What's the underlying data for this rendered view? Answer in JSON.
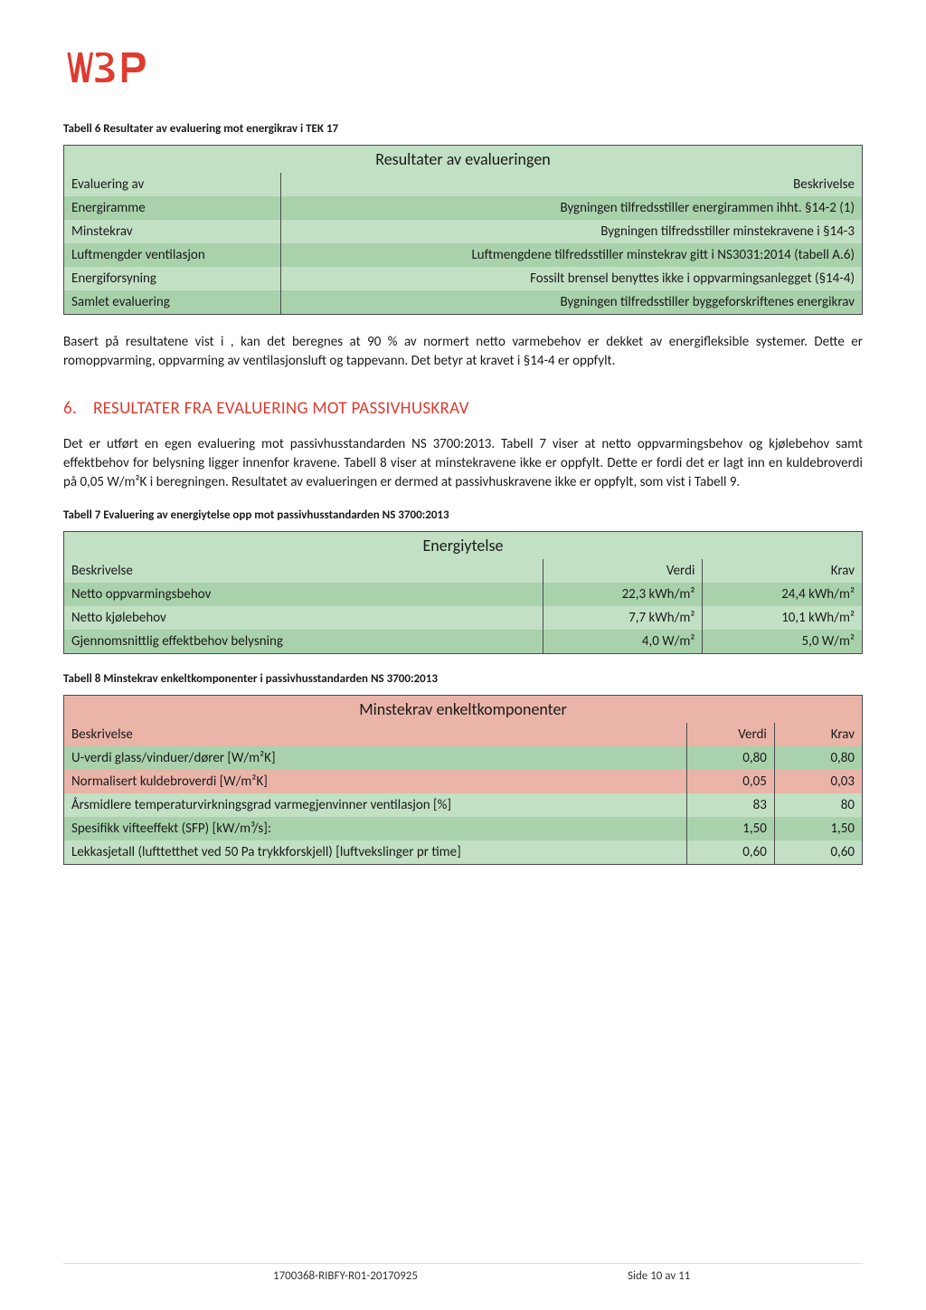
{
  "colors": {
    "brand_red": "#e03a2f",
    "green_header": "#c2e0c4",
    "green_strong": "#a9d2ac",
    "pink_header": "#eab5a8",
    "border": "#4a4a4a"
  },
  "table6": {
    "caption": "Tabell 6 Resultater av evaluering mot energikrav i TEK 17",
    "title": "Resultater av evalueringen",
    "col1": "Evaluering av",
    "col2": "Beskrivelse",
    "rows": [
      {
        "label": "Energiramme",
        "desc": "Bygningen tilfredsstiller energirammen ihht. §14-2 (1)"
      },
      {
        "label": "Minstekrav",
        "desc": "Bygningen tilfredsstiller minstekravene i §14-3"
      },
      {
        "label": "Luftmengder ventilasjon",
        "desc": "Luftmengdene tilfredsstiller minstekrav gitt i NS3031:2014 (tabell A.6)"
      },
      {
        "label": "Energiforsyning",
        "desc": "Fossilt brensel benyttes ikke i oppvarmingsanlegget (§14-4)"
      },
      {
        "label": "Samlet evaluering",
        "desc": "Bygningen tilfredsstiller byggeforskriftenes energikrav"
      }
    ]
  },
  "para1": "Basert på resultatene vist i , kan det beregnes at 90 % av normert netto varmebehov er dekket av energifleksible systemer. Dette er romoppvarming, oppvarming av ventilasjonsluft og tappevann. Det betyr at kravet i §14-4 er oppfylt.",
  "section6": {
    "num": "6.",
    "title": "RESULTATER FRA EVALUERING MOT PASSIVHUSKRAV",
    "para": "Det er utført en egen evaluering mot passivhusstandarden NS 3700:2013. Tabell 7 viser at netto oppvarmingsbehov og kjølebehov samt effektbehov for belysning ligger innenfor kravene. Tabell 8 viser at minstekravene ikke er oppfylt. Dette er fordi det er lagt inn en kuldebroverdi på 0,05 W/m²K i beregningen. Resultatet av evalueringen er dermed at passivhuskravene ikke er oppfylt, som vist i Tabell 9."
  },
  "table7": {
    "caption": "Tabell 7 Evaluering av energiytelse opp mot passivhusstandarden NS 3700:2013",
    "title": "Energiytelse",
    "col1": "Beskrivelse",
    "col2": "Verdi",
    "col3": "Krav",
    "rows": [
      {
        "label": "Netto oppvarmingsbehov",
        "verdi": "22,3 kWh/m²",
        "krav": "24,4 kWh/m²"
      },
      {
        "label": "Netto kjølebehov",
        "verdi": "7,7 kWh/m²",
        "krav": "10,1 kWh/m²"
      },
      {
        "label": "Gjennomsnittlig effektbehov belysning",
        "verdi": "4,0 W/m²",
        "krav": "5,0 W/m²"
      }
    ]
  },
  "table8": {
    "caption": "Tabell 8 Minstekrav enkeltkomponenter i passivhusstandarden NS 3700:2013",
    "title": "Minstekrav enkeltkomponenter",
    "col1": "Beskrivelse",
    "col2": "Verdi",
    "col3": "Krav",
    "rows": [
      {
        "label": "U-verdi glass/vinduer/dører [W/m²K]",
        "verdi": "0,80",
        "krav": "0,80",
        "cls": "bg-strong-green"
      },
      {
        "label": "Normalisert kuldebroverdi [W/m²K]",
        "verdi": "0,05",
        "krav": "0,03",
        "cls": "bg-pink"
      },
      {
        "label": "Årsmidlere temperaturvirkningsgrad varmegjenvinner ventilasjon [%]",
        "verdi": "83",
        "krav": "80",
        "cls": "bg-green"
      },
      {
        "label": "Spesifikk vifteeffekt (SFP) [kW/m³/s]:",
        "verdi": "1,50",
        "krav": "1,50",
        "cls": "bg-strong-green"
      },
      {
        "label": "Lekkasjetall (lufttetthet ved 50 Pa trykkforskjell) [luftvekslinger pr time]",
        "verdi": "0,60",
        "krav": "0,60",
        "cls": "bg-green"
      }
    ]
  },
  "footer": {
    "docid": "1700368-RIBFY-R01-20170925",
    "page": "Side 10 av 11"
  }
}
